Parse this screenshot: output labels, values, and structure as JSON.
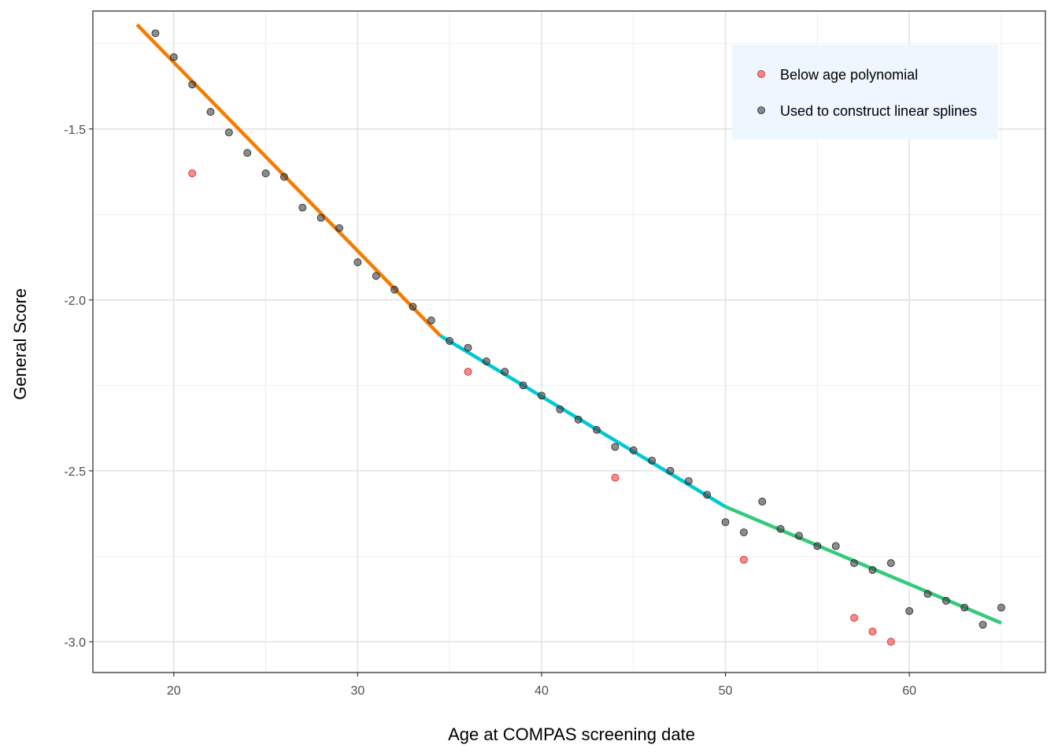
{
  "chart_data": {
    "type": "scatter",
    "xlabel": "Age at COMPAS screening date",
    "ylabel": "General Score",
    "xlim": [
      15.6,
      67.4
    ],
    "ylim": [
      -3.09,
      -1.155
    ],
    "x_ticks": [
      20,
      30,
      40,
      50,
      60
    ],
    "x_tick_labels": [
      "20",
      "30",
      "40",
      "50",
      "60"
    ],
    "y_ticks": [
      -1.5,
      -2.0,
      -2.5,
      -3.0
    ],
    "y_tick_labels": [
      "-1.5",
      "-2.0",
      "-2.5",
      "-3.0"
    ],
    "grid": true,
    "legend_position": "top-right",
    "legend": [
      {
        "label": "Below age polynomial",
        "color": "#f8766d"
      },
      {
        "label": "Used to construct linear splines",
        "color": "#808080"
      }
    ],
    "series": [
      {
        "name": "Below age polynomial",
        "color": "#ff3b3b",
        "points": [
          [
            21,
            -1.63
          ],
          [
            36,
            -2.21
          ],
          [
            44,
            -2.52
          ],
          [
            51,
            -2.76
          ],
          [
            57,
            -2.93
          ],
          [
            58,
            -2.97
          ],
          [
            59,
            -3.0
          ]
        ]
      },
      {
        "name": "Used to construct linear splines",
        "color": "#404040",
        "points": [
          [
            19,
            -1.22
          ],
          [
            20,
            -1.29
          ],
          [
            21,
            -1.37
          ],
          [
            22,
            -1.45
          ],
          [
            23,
            -1.51
          ],
          [
            24,
            -1.57
          ],
          [
            25,
            -1.63
          ],
          [
            26,
            -1.64
          ],
          [
            27,
            -1.73
          ],
          [
            28,
            -1.76
          ],
          [
            29,
            -1.79
          ],
          [
            30,
            -1.89
          ],
          [
            31,
            -1.93
          ],
          [
            32,
            -1.97
          ],
          [
            33,
            -2.02
          ],
          [
            34,
            -2.06
          ],
          [
            35,
            -2.12
          ],
          [
            36,
            -2.14
          ],
          [
            37,
            -2.18
          ],
          [
            38,
            -2.21
          ],
          [
            39,
            -2.25
          ],
          [
            40,
            -2.28
          ],
          [
            41,
            -2.32
          ],
          [
            42,
            -2.35
          ],
          [
            43,
            -2.38
          ],
          [
            44,
            -2.43
          ],
          [
            45,
            -2.44
          ],
          [
            46,
            -2.47
          ],
          [
            47,
            -2.5
          ],
          [
            48,
            -2.53
          ],
          [
            49,
            -2.57
          ],
          [
            50,
            -2.65
          ],
          [
            51,
            -2.68
          ],
          [
            52,
            -2.59
          ],
          [
            53,
            -2.67
          ],
          [
            54,
            -2.69
          ],
          [
            55,
            -2.72
          ],
          [
            56,
            -2.72
          ],
          [
            57,
            -2.77
          ],
          [
            58,
            -2.79
          ],
          [
            59,
            -2.77
          ],
          [
            60,
            -2.91
          ],
          [
            61,
            -2.86
          ],
          [
            62,
            -2.88
          ],
          [
            63,
            -2.9
          ],
          [
            64,
            -2.95
          ],
          [
            65,
            -2.9
          ]
        ]
      }
    ],
    "splines": [
      {
        "color": "#f57c00",
        "x": [
          18,
          34.5
        ],
        "y": [
          -1.195,
          -2.105
        ]
      },
      {
        "color": "#00c8d4",
        "x": [
          34.5,
          50
        ],
        "y": [
          -2.105,
          -2.605
        ]
      },
      {
        "color": "#35c97a",
        "x": [
          50,
          65
        ],
        "y": [
          -2.605,
          -2.945
        ]
      }
    ]
  }
}
